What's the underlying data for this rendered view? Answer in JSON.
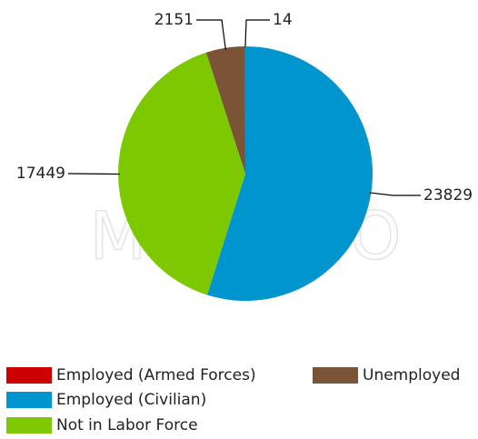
{
  "chart_data": {
    "type": "pie",
    "watermark": "MOVOTO",
    "categories": [
      "Employed (Armed Forces)",
      "Employed (Civilian)",
      "Not in Labor Force",
      "Unemployed"
    ],
    "values": [
      14,
      23829,
      17449,
      2151
    ],
    "colors": [
      "#cc0000",
      "#0095cf",
      "#7dc800",
      "#7b5438"
    ],
    "legend": "bottom"
  }
}
